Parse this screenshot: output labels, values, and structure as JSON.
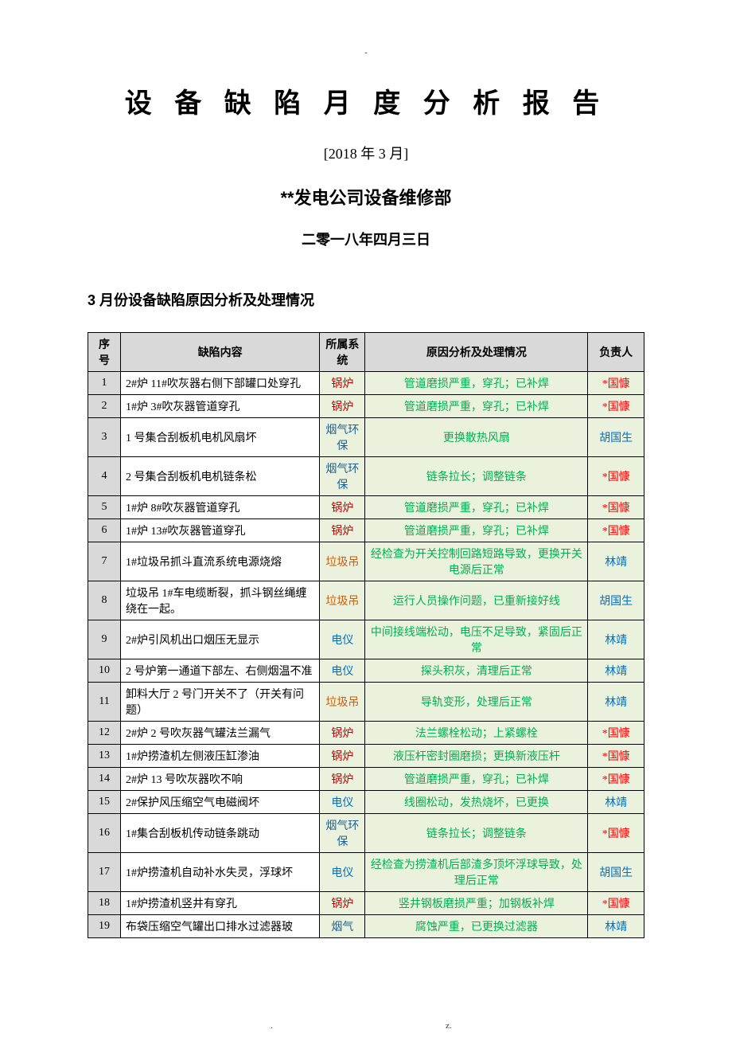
{
  "topMark": "-",
  "title": "设 备 缺 陷 月 度 分 析 报 告",
  "subtitleMonth": "[2018 年 3 月]",
  "dept": "**发电公司设备维修部",
  "dateLine": "二零一八年四月三日",
  "sectionHeader": "3 月份设备缺陷原因分析及处理情况",
  "footerLeft": ".",
  "footerRight": "z.",
  "colors": {
    "headerBg": "#d9d9d9",
    "greenBg": "#eaf1dd",
    "sysBoiler": "#c00000",
    "sysFlue": "#1f6091",
    "sysGarbage": "#c65f11",
    "sysElec": "#006fc0",
    "analysis": "#00b050",
    "personRed": "#ff0000",
    "personBlue": "#006fc0"
  },
  "table": {
    "headers": [
      "序号",
      "缺陷内容",
      "所属系统",
      "原因分析及处理情况",
      "负责人"
    ],
    "rows": [
      {
        "idx": "1",
        "defect": "2#炉 11#吹灰器右侧下部罐口处穿孔",
        "sys": "锅炉",
        "sysColor": "sysBoiler",
        "analysis": "管道磨损严重，穿孔；已补焊",
        "person": "*国慷",
        "personColor": "personRed"
      },
      {
        "idx": "2",
        "defect": "1#炉 3#吹灰器管道穿孔",
        "sys": "锅炉",
        "sysColor": "sysBoiler",
        "analysis": "管道磨损严重，穿孔；已补焊",
        "person": "*国慷",
        "personColor": "personRed"
      },
      {
        "idx": "3",
        "defect": "1 号集合刮板机电机风扇坏",
        "sys": "烟气环保",
        "sysColor": "sysFlue",
        "analysis": "更换散热风扇",
        "person": "胡国生",
        "personColor": "personBlue"
      },
      {
        "idx": "4",
        "defect": "2 号集合刮板机电机链条松",
        "sys": "烟气环保",
        "sysColor": "sysFlue",
        "analysis": "链条拉长；调整链条",
        "person": "*国慷",
        "personColor": "personRed"
      },
      {
        "idx": "5",
        "defect": "1#炉 8#吹灰器管道穿孔",
        "sys": "锅炉",
        "sysColor": "sysBoiler",
        "analysis": "管道磨损严重，穿孔；已补焊",
        "person": "*国慷",
        "personColor": "personRed"
      },
      {
        "idx": "6",
        "defect": "1#炉 13#吹灰器管道穿孔",
        "sys": "锅炉",
        "sysColor": "sysBoiler",
        "analysis": "管道磨损严重，穿孔；已补焊",
        "person": "*国慷",
        "personColor": "personRed"
      },
      {
        "idx": "7",
        "defect": "1#垃圾吊抓斗直流系统电源烧熔",
        "sys": "垃圾吊",
        "sysColor": "sysGarbage",
        "analysis": "经检查为开关控制回路短路导致，更换开关电源后正常",
        "person": "林靖",
        "personColor": "personBlue"
      },
      {
        "idx": "8",
        "defect": "垃圾吊 1#车电缆断裂，抓斗钢丝绳缠绕在一起。",
        "sys": "垃圾吊",
        "sysColor": "sysGarbage",
        "analysis": "运行人员操作问题，已重新接好线",
        "person": "胡国生",
        "personColor": "personBlue"
      },
      {
        "idx": "9",
        "defect": "2#炉引风机出口烟压无显示",
        "sys": "电仪",
        "sysColor": "sysElec",
        "analysis": "中间接线端松动，电压不足导致，紧固后正常",
        "person": "林靖",
        "personColor": "personBlue"
      },
      {
        "idx": "10",
        "defect": "2 号炉第一通道下部左、右侧烟温不准",
        "sys": "电仪",
        "sysColor": "sysElec",
        "analysis": "探头积灰，清理后正常",
        "person": "林靖",
        "personColor": "personBlue"
      },
      {
        "idx": "11",
        "defect": "卸料大厅 2 号门开关不了（开关有问题）",
        "sys": "垃圾吊",
        "sysColor": "sysGarbage",
        "analysis": "导轨变形，处理后正常",
        "person": "林靖",
        "personColor": "personBlue"
      },
      {
        "idx": "12",
        "defect": "2#炉 2 号吹灰器气罐法兰漏气",
        "sys": "锅炉",
        "sysColor": "sysBoiler",
        "analysis": "法兰螺栓松动；上紧螺栓",
        "person": "*国慷",
        "personColor": "personRed"
      },
      {
        "idx": "13",
        "defect": "1#炉捞渣机左侧液压缸渗油",
        "sys": "锅炉",
        "sysColor": "sysBoiler",
        "analysis": "液压杆密封圈磨损；更换新液压杆",
        "person": "*国慷",
        "personColor": "personRed"
      },
      {
        "idx": "14",
        "defect": "2#炉 13 号吹灰器吹不响",
        "sys": "锅炉",
        "sysColor": "sysBoiler",
        "analysis": "管道磨损严重，穿孔；已补焊",
        "person": "*国慷",
        "personColor": "personRed"
      },
      {
        "idx": "15",
        "defect": "2#保护风压缩空气电磁阀坏",
        "sys": "电仪",
        "sysColor": "sysElec",
        "analysis": "线圈松动，发热烧坏，已更换",
        "person": "林靖",
        "personColor": "personBlue"
      },
      {
        "idx": "16",
        "defect": "1#集合刮板机传动链条跳动",
        "sys": "烟气环保",
        "sysColor": "sysFlue",
        "analysis": "链条拉长；调整链条",
        "person": "*国慷",
        "personColor": "personRed"
      },
      {
        "idx": "17",
        "defect": "1#炉捞渣机自动补水失灵，浮球坏",
        "sys": "电仪",
        "sysColor": "sysElec",
        "analysis": "经检查为捞渣机后部渣多顶坏浮球导致，处理后正常",
        "person": "胡国生",
        "personColor": "personBlue"
      },
      {
        "idx": "18",
        "defect": "1#炉捞渣机竖井有穿孔",
        "sys": "锅炉",
        "sysColor": "sysBoiler",
        "analysis": "竖井钢板磨损严重；加钢板补焊",
        "person": "*国慷",
        "personColor": "personRed"
      },
      {
        "idx": "19",
        "defect": "布袋压缩空气罐出口排水过滤器玻",
        "sys": "烟气",
        "sysColor": "sysFlue",
        "analysis": "腐蚀严重，已更换过滤器",
        "person": "林靖",
        "personColor": "personBlue"
      }
    ]
  }
}
